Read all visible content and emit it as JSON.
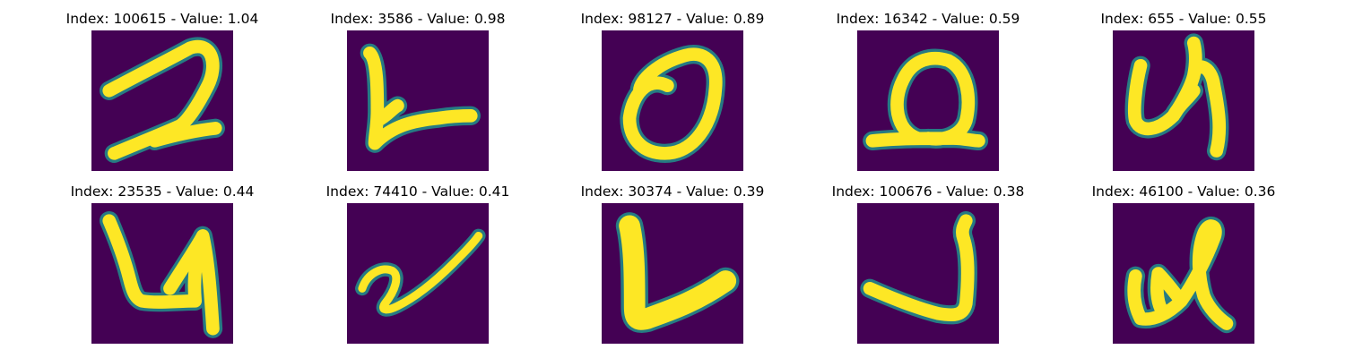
{
  "figure": {
    "background_color": "#440154",
    "stroke_color": "#fde725",
    "edge_color": "#21918c",
    "panels": [
      {
        "title": "Index: 100615 - Value: 1.04",
        "digit": "2"
      },
      {
        "title": "Index: 3586 - Value: 0.98",
        "digit": "L"
      },
      {
        "title": "Index: 98127 - Value: 0.89",
        "digit": "0"
      },
      {
        "title": "Index: 16342 - Value: 0.59",
        "digit": "0"
      },
      {
        "title": "Index: 655 - Value: 0.55",
        "digit": "4"
      },
      {
        "title": "Index: 23535 - Value: 0.44",
        "digit": "4"
      },
      {
        "title": "Index: 74410 - Value: 0.41",
        "digit": "2"
      },
      {
        "title": "Index: 30374 - Value: 0.39",
        "digit": "L"
      },
      {
        "title": "Index: 100676 - Value: 0.38",
        "digit": "J"
      },
      {
        "title": "Index: 46100 - Value: 0.36",
        "digit": "4"
      }
    ]
  }
}
